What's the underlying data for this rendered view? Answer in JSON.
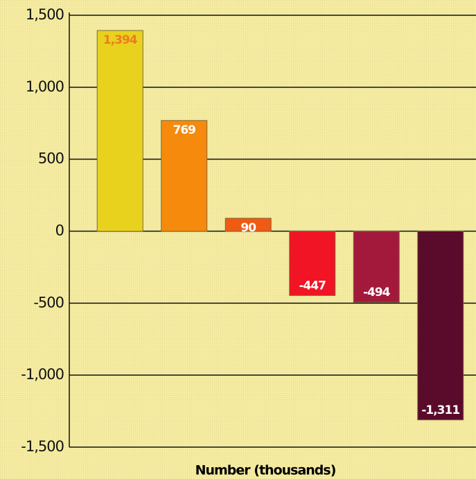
{
  "chart_data": {
    "type": "bar",
    "xlabel": "Number (thousands)",
    "categories": [
      null,
      null,
      null,
      null,
      null,
      null
    ],
    "values": [
      1394,
      769,
      90,
      -447,
      -494,
      -1311
    ],
    "value_labels": [
      "1,394",
      "769",
      "90",
      "-447",
      "-494",
      "-1,311"
    ],
    "colors": [
      "#e8d21e",
      "#f58a0c",
      "#f05a12",
      "#f01424",
      "#a3193c",
      "#5a0a2a"
    ],
    "value_label_colors": [
      "#f07a20",
      "#ffffff",
      "#ffffff",
      "#ffffff",
      "#ffffff",
      "#ffffff"
    ],
    "ylim": [
      -1500,
      1500
    ],
    "yticks": [
      {
        "value": 1500,
        "label": "1,500"
      },
      {
        "value": 1000,
        "label": "1,000"
      },
      500,
      0,
      -500,
      {
        "value": -1000,
        "label": "-1,000"
      },
      {
        "value": -1500,
        "label": "-1,500"
      }
    ],
    "grid": true
  }
}
